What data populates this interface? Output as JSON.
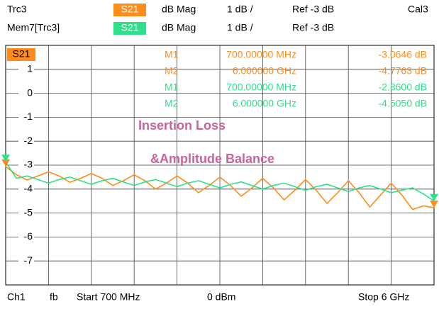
{
  "chart_data": {
    "type": "line",
    "header": [
      {
        "trace": "Trc3",
        "param": "S21",
        "format": "dB Mag",
        "scale": "1 dB /",
        "ref": "Ref -3 dB",
        "cal": "Cal3"
      },
      {
        "trace": "Mem7[Trc3]",
        "param": "S21",
        "format": "dB Mag",
        "scale": "1 dB /",
        "ref": "Ref -3 dB"
      }
    ],
    "trace_label": "S21",
    "annotations": [
      "Insertion Loss",
      "&Amplitude Balance"
    ],
    "footer": [
      "Ch1",
      "fb",
      "Start 700 MHz",
      "0 dBm",
      "Stop 6 GHz"
    ],
    "xlim": [
      0.7,
      6
    ],
    "xticks": [
      1.23,
      1.76,
      2.29,
      2.82,
      3.35,
      3.88,
      4.41,
      4.94,
      5.47
    ],
    "ylim": [
      -8,
      2
    ],
    "yticks": [
      1,
      0,
      -1,
      -2,
      -3,
      -4,
      -5,
      -6,
      -7
    ],
    "grid": true,
    "x": [
      0.7,
      0.8325,
      0.965,
      1.0975,
      1.23,
      1.3625,
      1.495,
      1.6275,
      1.76,
      1.8925,
      2.025,
      2.1575,
      2.29,
      2.4225,
      2.555,
      2.6875,
      2.82,
      2.9525,
      3.085,
      3.2175,
      3.35,
      3.4825,
      3.615,
      3.7475,
      3.88,
      4.0125,
      4.145,
      4.2775,
      4.41,
      4.5425,
      4.675,
      4.8075,
      4.94,
      5.0725,
      5.205,
      5.3375,
      5.47,
      5.6025,
      5.735,
      5.8675,
      6.0
    ],
    "series": [
      {
        "name": "Trc3",
        "color": "#ff8c1a",
        "values": [
          -3.06,
          -3.4,
          -3.62,
          -3.45,
          -3.28,
          -3.45,
          -3.72,
          -3.55,
          -3.35,
          -3.55,
          -3.85,
          -3.65,
          -3.4,
          -3.65,
          -4.0,
          -3.75,
          -3.45,
          -3.75,
          -4.15,
          -3.85,
          -3.5,
          -3.85,
          -4.3,
          -3.95,
          -3.55,
          -3.95,
          -4.45,
          -4.05,
          -3.6,
          -4.05,
          -4.6,
          -4.15,
          -3.65,
          -4.15,
          -4.75,
          -4.25,
          -3.75,
          -4.25,
          -4.85,
          -4.7,
          -4.78
        ],
        "markers": [
          {
            "label": "M1",
            "freq": "700.00000 MHz",
            "value": "-3.0646 dB"
          },
          {
            "label": "M2",
            "freq": "6.000000 GHz",
            "value": "-4.7763 dB"
          }
        ]
      },
      {
        "name": "Mem7[Trc3]",
        "color": "#2ee08a",
        "values": [
          -2.86,
          -3.55,
          -3.45,
          -3.6,
          -3.75,
          -3.6,
          -3.5,
          -3.65,
          -3.8,
          -3.65,
          -3.55,
          -3.7,
          -3.85,
          -3.7,
          -3.6,
          -3.75,
          -3.9,
          -3.75,
          -3.65,
          -3.8,
          -3.95,
          -3.8,
          -3.7,
          -3.85,
          -4.0,
          -3.85,
          -3.75,
          -3.9,
          -4.05,
          -3.9,
          -3.8,
          -3.95,
          -4.1,
          -3.95,
          -3.85,
          -4.0,
          -4.15,
          -4.05,
          -3.95,
          -4.2,
          -4.5
        ],
        "markers": [
          {
            "label": "M1",
            "freq": "700.00000 MHz",
            "value": "-2.8600 dB"
          },
          {
            "label": "M2",
            "freq": "6.000000 GHz",
            "value": "-4.5050 dB"
          }
        ]
      }
    ]
  }
}
